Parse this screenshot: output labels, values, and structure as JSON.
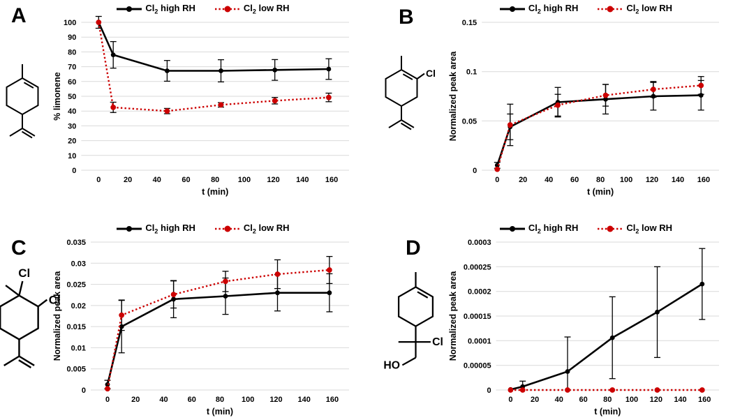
{
  "figure": {
    "background": "#ffffff",
    "colors": {
      "high_rh": "#000000",
      "low_rh": "#CC0000",
      "gridline": "#D9D9D9",
      "error_bar": "#000000",
      "text": "#000000"
    }
  },
  "legend": {
    "high": {
      "pre": "Cl",
      "sub": "2",
      "post": " high RH"
    },
    "low": {
      "pre": "Cl",
      "sub": "2",
      "post": " low RH"
    }
  },
  "panels": [
    {
      "label": "A",
      "structure": "limonene",
      "structure_labels": []
    },
    {
      "label": "B",
      "structure": "ring-chlorinated limonene (vinylic Cl)",
      "structure_labels": [
        "Cl"
      ]
    },
    {
      "label": "C",
      "structure": "limonene dichloride (1,2-dichloro ring)",
      "structure_labels": [
        "Cl",
        "Cl"
      ]
    },
    {
      "label": "D",
      "structure": "limonene chlorohydrin (C(CH3)(Cl)CH2OH side chain)",
      "structure_labels": [
        "Cl",
        "HO"
      ]
    }
  ],
  "chart_data": [
    {
      "type": "line",
      "panel": "A",
      "title": "",
      "xlabel": "t (min)",
      "ylabel": "% limonene",
      "grid": "horizontal",
      "legend_position": "top-center",
      "x": [
        0,
        10,
        47,
        84,
        121,
        158
      ],
      "xticks": {
        "values": [
          0,
          20,
          40,
          60,
          80,
          100,
          120,
          140,
          160
        ],
        "labels": [
          "0",
          "20",
          "40",
          "60",
          "80",
          "100",
          "120",
          "140",
          "160"
        ]
      },
      "xlim": [
        0,
        160
      ],
      "ylim": [
        0,
        100
      ],
      "yticks": {
        "values": [
          0,
          10,
          20,
          30,
          40,
          50,
          60,
          70,
          80,
          90,
          100
        ],
        "labels": [
          "0",
          "10",
          "20",
          "30",
          "40",
          "50",
          "60",
          "70",
          "80",
          "90",
          "100"
        ]
      },
      "series": [
        {
          "name": "Cl2 high RH",
          "color": "#000000",
          "line": "solid",
          "values": [
            100,
            78,
            67.2,
            67.2,
            67.8,
            68.4
          ],
          "errors": [
            4,
            9,
            7,
            7.5,
            7,
            7
          ]
        },
        {
          "name": "Cl2 low RH",
          "color": "#CC0000",
          "line": "dotted",
          "values": [
            100,
            42.5,
            40,
            44.2,
            47,
            49.2
          ],
          "errors": [
            0,
            3.5,
            1.8,
            1.5,
            2.2,
            2.9
          ]
        }
      ]
    },
    {
      "type": "line",
      "panel": "B",
      "title": "",
      "xlabel": "t (min)",
      "ylabel": "Normalized peak area",
      "grid": "horizontal",
      "legend_position": "top-center",
      "x": [
        0,
        10,
        47,
        84,
        121,
        158
      ],
      "xticks": {
        "values": [
          0,
          20,
          40,
          60,
          80,
          100,
          120,
          140,
          160
        ],
        "labels": [
          "0",
          "20",
          "40",
          "60",
          "80",
          "100",
          "120",
          "140",
          "160"
        ]
      },
      "xlim": [
        0,
        160
      ],
      "ylim": [
        0,
        0.15
      ],
      "yticks": {
        "values": [
          0,
          0.05,
          0.1,
          0.15
        ],
        "labels": [
          "0",
          "0.05",
          "0.1",
          "0.15"
        ]
      },
      "series": [
        {
          "name": "Cl2 high RH",
          "color": "#000000",
          "line": "solid",
          "values": [
            0.005,
            0.044,
            0.069,
            0.072,
            0.075,
            0.076
          ],
          "errors": [
            0.003,
            0.013,
            0.015,
            0.015,
            0.014,
            0.015
          ]
        },
        {
          "name": "Cl2 low RH",
          "color": "#CC0000",
          "line": "dotted",
          "values": [
            0.001,
            0.046,
            0.066,
            0.076,
            0.082,
            0.086
          ],
          "errors": [
            0,
            0.021,
            0.011,
            0.011,
            0.008,
            0.009
          ]
        }
      ]
    },
    {
      "type": "line",
      "panel": "C",
      "title": "",
      "xlabel": "t (min)",
      "ylabel": "Normalized peak area",
      "grid": "horizontal",
      "legend_position": "top-center",
      "x": [
        0,
        10,
        47,
        84,
        121,
        158
      ],
      "xticks": {
        "values": [
          0,
          20,
          40,
          60,
          80,
          100,
          120,
          140,
          160
        ],
        "labels": [
          "0",
          "20",
          "40",
          "60",
          "80",
          "100",
          "120",
          "140",
          "160"
        ]
      },
      "xlim": [
        0,
        160
      ],
      "ylim": [
        0,
        0.035
      ],
      "yticks": {
        "values": [
          0,
          0.005,
          0.01,
          0.015,
          0.02,
          0.025,
          0.03,
          0.035
        ],
        "labels": [
          "0",
          "0.005",
          "0.01",
          "0.015",
          "0.02",
          "0.025",
          "0.03",
          "0.035"
        ]
      },
      "series": [
        {
          "name": "Cl2 high RH",
          "color": "#000000",
          "line": "solid",
          "values": [
            0.0013,
            0.015,
            0.0215,
            0.0222,
            0.023,
            0.023
          ],
          "errors": [
            0.001,
            0.0062,
            0.0044,
            0.0043,
            0.0043,
            0.0045
          ]
        },
        {
          "name": "Cl2 low RH",
          "color": "#CC0000",
          "line": "dotted",
          "values": [
            0.0003,
            0.0177,
            0.0226,
            0.0257,
            0.0274,
            0.0284
          ],
          "errors": [
            0,
            0.0036,
            0.0032,
            0.0024,
            0.0034,
            0.0032
          ]
        }
      ]
    },
    {
      "type": "line",
      "panel": "D",
      "title": "",
      "xlabel": "t (min)",
      "ylabel": "Normalized peak area",
      "grid": "horizontal",
      "legend_position": "top-center",
      "x": [
        0,
        10,
        47,
        84,
        121,
        158
      ],
      "xticks": {
        "values": [
          0,
          20,
          40,
          60,
          80,
          100,
          120,
          140,
          160
        ],
        "labels": [
          "0",
          "20",
          "40",
          "60",
          "80",
          "100",
          "120",
          "140",
          "160"
        ]
      },
      "xlim": [
        0,
        160
      ],
      "ylim": [
        0,
        0.0003
      ],
      "yticks": {
        "values": [
          0,
          5e-05,
          0.0001,
          0.00015,
          0.0002,
          0.00025,
          0.0003
        ],
        "labels": [
          "0",
          "0.00005",
          "0.0001",
          "0.00015",
          "0.0002",
          "0.00025",
          "0.0003"
        ]
      },
      "series": [
        {
          "name": "Cl2 high RH",
          "color": "#000000",
          "line": "solid",
          "values": [
            1e-06,
            7e-06,
            3.75e-05,
            0.000106,
            0.000158,
            0.000215
          ],
          "errors": [
            0,
            1.1e-05,
            7e-05,
            8.3e-05,
            9.2e-05,
            7.2e-05
          ]
        },
        {
          "name": "Cl2 low RH",
          "color": "#CC0000",
          "line": "dotted",
          "values": [
            0,
            0,
            0,
            0,
            0,
            0
          ],
          "errors": [
            0,
            0,
            0,
            0,
            0,
            0
          ]
        }
      ]
    }
  ]
}
